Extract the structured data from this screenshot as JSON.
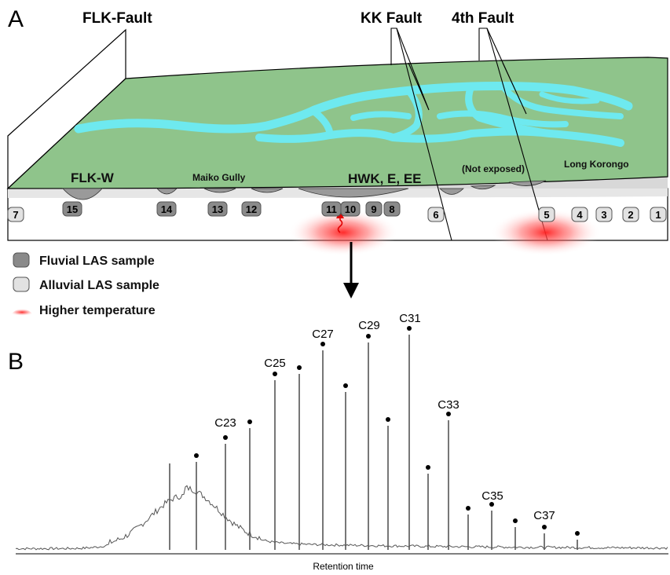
{
  "panels": {
    "a": "A",
    "b": "B"
  },
  "faults": [
    {
      "id": "flk",
      "label": "FLK-Fault"
    },
    {
      "id": "kk",
      "label": "KK Fault"
    },
    {
      "id": "fourth",
      "label": "4th Fault"
    }
  ],
  "sites": {
    "flk_w": "FLK-W",
    "maiko": "Maiko Gully",
    "hwk": "HWK, E, EE",
    "not_exposed": "(Not exposed)",
    "long_korongo": "Long Korongo"
  },
  "samples": [
    {
      "label": "7",
      "type": "alluvial"
    },
    {
      "label": "15",
      "type": "fluvial"
    },
    {
      "label": "14",
      "type": "fluvial"
    },
    {
      "label": "13",
      "type": "fluvial"
    },
    {
      "label": "12",
      "type": "fluvial"
    },
    {
      "label": "11",
      "type": "fluvial"
    },
    {
      "label": "10",
      "type": "fluvial"
    },
    {
      "label": "9",
      "type": "fluvial"
    },
    {
      "label": "8",
      "type": "fluvial"
    },
    {
      "label": "6",
      "type": "alluvial"
    },
    {
      "label": "5",
      "type": "alluvial"
    },
    {
      "label": "4",
      "type": "alluvial"
    },
    {
      "label": "3",
      "type": "alluvial"
    },
    {
      "label": "2",
      "type": "alluvial"
    },
    {
      "label": "1",
      "type": "alluvial"
    }
  ],
  "legend": {
    "fluvial": "Fluvial LAS sample",
    "alluvial": "Alluvial LAS sample",
    "temperature": "Higher temperature"
  },
  "colors": {
    "land": "#8fc48b",
    "river": "#6ee9ef",
    "fluvial": "#8a8a8a",
    "alluvial": "#e2e2e2",
    "heat": "#ff3030"
  },
  "chromatogram": {
    "xlabel": "Retention time",
    "peak_labels": [
      "C23",
      "C25",
      "C27",
      "C29",
      "C31",
      "C33",
      "C35",
      "C37"
    ]
  }
}
